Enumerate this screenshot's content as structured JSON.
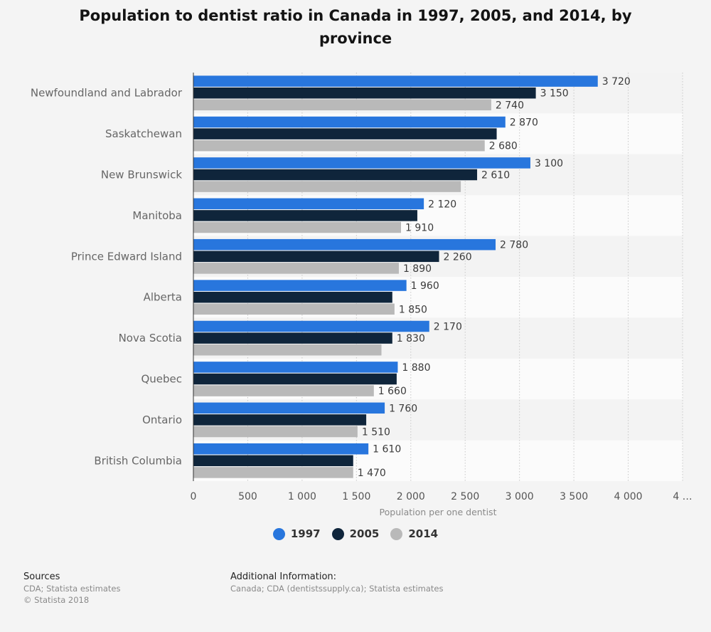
{
  "chart_data": {
    "type": "bar",
    "orientation": "horizontal",
    "title": "Population to dentist ratio in Canada in 1997, 2005, and 2014, by province",
    "xlabel": "Population per one dentist",
    "ylabel": "",
    "xlim": [
      0,
      4500
    ],
    "xticks": [
      "0",
      "500",
      "1 000",
      "1 500",
      "2 000",
      "2 500",
      "3 000",
      "3 500",
      "4 000",
      "4 …"
    ],
    "grid": true,
    "legend_position": "bottom",
    "categories": [
      "Newfoundland and Labrador",
      "Saskatchewan",
      "New Brunswick",
      "Manitoba",
      "Prince Edward Island",
      "Alberta",
      "Nova Scotia",
      "Quebec",
      "Ontario",
      "British Columbia"
    ],
    "series": [
      {
        "name": "1997",
        "color": "#2876dd",
        "values": [
          3720,
          2870,
          3100,
          2120,
          2780,
          1960,
          2170,
          1880,
          1760,
          1610
        ],
        "labels": [
          "3 720",
          "2 870",
          "3 100",
          "2 120",
          "2 780",
          "1 960",
          "2 170",
          "1 880",
          "1 760",
          "1 610"
        ]
      },
      {
        "name": "2005",
        "color": "#0f253b",
        "values": [
          3150,
          2790,
          2610,
          2060,
          2260,
          1830,
          1830,
          1870,
          1590,
          1470
        ],
        "labels": [
          "3 150",
          null,
          "2 610",
          null,
          "2 260",
          null,
          "1 830",
          null,
          null,
          null
        ]
      },
      {
        "name": "2014",
        "color": "#b9b9b9",
        "values": [
          2740,
          2680,
          2460,
          1910,
          1890,
          1850,
          1730,
          1660,
          1510,
          1470
        ],
        "labels": [
          "2 740",
          "2 680",
          null,
          "1 910",
          "1 890",
          "1 850",
          null,
          "1 660",
          "1 510",
          "1 470"
        ]
      }
    ]
  },
  "legend": {
    "items": [
      {
        "label": "1997",
        "color": "#2876dd"
      },
      {
        "label": "2005",
        "color": "#0f253b"
      },
      {
        "label": "2014",
        "color": "#b9b9b9"
      }
    ]
  },
  "footer": {
    "sources_title": "Sources",
    "sources_lines": [
      "CDA; Statista estimates",
      "© Statista 2018"
    ],
    "additional_title": "Additional Information:",
    "additional_lines": [
      "Canada; CDA (dentistssupply.ca); Statista estimates"
    ]
  }
}
